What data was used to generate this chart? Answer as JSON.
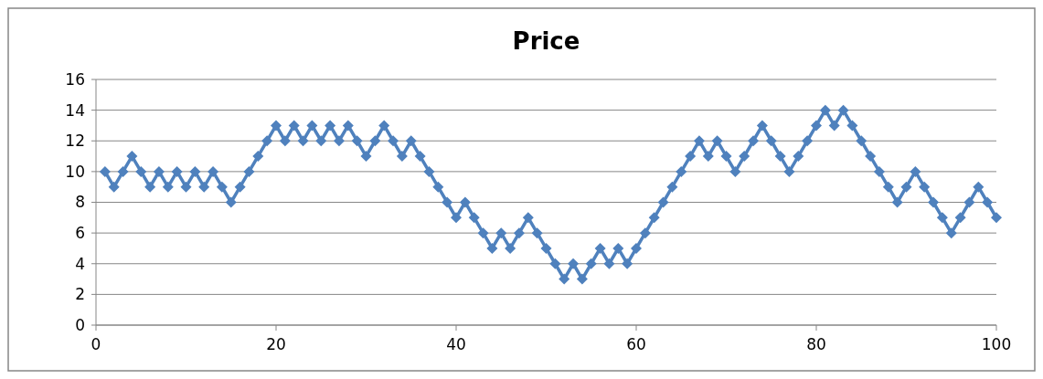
{
  "chart_data": {
    "type": "line",
    "title": "Price",
    "x": [
      1,
      2,
      3,
      4,
      5,
      6,
      7,
      8,
      9,
      10,
      11,
      12,
      13,
      14,
      15,
      16,
      17,
      18,
      19,
      20,
      21,
      22,
      23,
      24,
      25,
      26,
      27,
      28,
      29,
      30,
      31,
      32,
      33,
      34,
      35,
      36,
      37,
      38,
      39,
      40,
      41,
      42,
      43,
      44,
      45,
      46,
      47,
      48,
      49,
      50,
      51,
      52,
      53,
      54,
      55,
      56,
      57,
      58,
      59,
      60,
      61,
      62,
      63,
      64,
      65,
      66,
      67,
      68,
      69,
      70,
      71,
      72,
      73,
      74,
      75,
      76,
      77,
      78,
      79,
      80,
      81,
      82,
      83,
      84,
      85,
      86,
      87,
      88,
      89,
      90,
      91,
      92,
      93,
      94,
      95,
      96,
      97,
      98,
      99,
      100
    ],
    "series": [
      {
        "color": "#4f81bd",
        "values": [
          10,
          9,
          10,
          11,
          10,
          9,
          10,
          9,
          10,
          9,
          10,
          9,
          10,
          9,
          8,
          9,
          10,
          11,
          12,
          13,
          12,
          13,
          12,
          13,
          12,
          13,
          12,
          13,
          12,
          11,
          12,
          13,
          12,
          11,
          12,
          11,
          10,
          9,
          8,
          7,
          8,
          7,
          6,
          5,
          6,
          5,
          6,
          7,
          6,
          5,
          4,
          3,
          4,
          3,
          4,
          5,
          4,
          5,
          4,
          5,
          6,
          7,
          8,
          9,
          10,
          11,
          12,
          11,
          12,
          11,
          10,
          11,
          12,
          13,
          12,
          11,
          10,
          11,
          12,
          13,
          14,
          13,
          14,
          13,
          12,
          11,
          10,
          9,
          8,
          9,
          10,
          9,
          8,
          7,
          6,
          7,
          8,
          9,
          8,
          7
        ]
      }
    ],
    "xlim": [
      0,
      100
    ],
    "xticks": [
      0,
      20,
      40,
      60,
      80,
      100
    ],
    "ylim": [
      0,
      16
    ],
    "yticks": [
      0,
      2,
      4,
      6,
      8,
      10,
      12,
      14,
      16
    ],
    "grid": "y",
    "marker": "diamond",
    "line_style": "solid"
  }
}
